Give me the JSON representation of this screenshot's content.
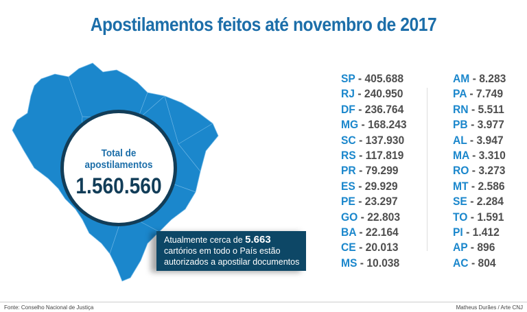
{
  "title": "Apostilamentos feitos até novembro de 2017",
  "total": {
    "label": "Total de apostilamentos",
    "value": "1.560.560"
  },
  "callout": {
    "before": "Atualmente cerca de",
    "number": "5.663",
    "after": "cartórios em todo o País estão autorizados a apostilar documentos"
  },
  "states_left": [
    {
      "code": "SP",
      "value": "405.688"
    },
    {
      "code": "RJ",
      "value": "240.950"
    },
    {
      "code": "DF",
      "value": "236.764"
    },
    {
      "code": "MG",
      "value": "168.243"
    },
    {
      "code": "SC",
      "value": "137.930"
    },
    {
      "code": "RS",
      "value": "117.819"
    },
    {
      "code": "PR",
      "value": "79.299"
    },
    {
      "code": "ES",
      "value": "29.929"
    },
    {
      "code": "PE",
      "value": "23.297"
    },
    {
      "code": "GO",
      "value": "22.803"
    },
    {
      "code": "BA",
      "value": "22.164"
    },
    {
      "code": "CE",
      "value": "20.013"
    },
    {
      "code": "MS",
      "value": "10.038"
    }
  ],
  "states_right": [
    {
      "code": "AM",
      "value": "8.283"
    },
    {
      "code": "PA",
      "value": "7.749"
    },
    {
      "code": "RN",
      "value": "5.511"
    },
    {
      "code": "PB",
      "value": "3.977"
    },
    {
      "code": "AL",
      "value": "3.947"
    },
    {
      "code": "MA",
      "value": "3.310"
    },
    {
      "code": "RO",
      "value": "3.273"
    },
    {
      "code": "MT",
      "value": "2.586"
    },
    {
      "code": "SE",
      "value": "2.284"
    },
    {
      "code": "TO",
      "value": "1.591"
    },
    {
      "code": "PI",
      "value": "1.412"
    },
    {
      "code": "AP",
      "value": "896"
    },
    {
      "code": "AC",
      "value": "804"
    }
  ],
  "separator": " - ",
  "footer": {
    "source": "Fonte: Conselho Nacional de Justiça",
    "credit": "Matheus Durães / Arte CNJ"
  },
  "colors": {
    "title": "#1c6ea9",
    "map": "#1b87cc",
    "dark": "#0d4766"
  }
}
